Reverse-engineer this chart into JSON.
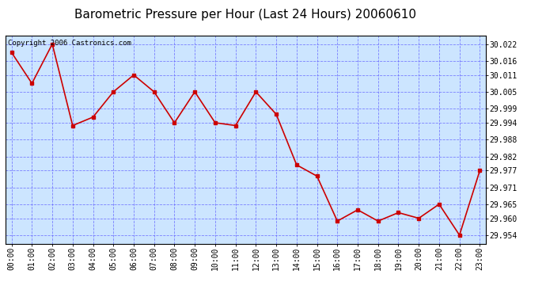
{
  "title": "Barometric Pressure per Hour (Last 24 Hours) 20060610",
  "copyright_text": "Copyright 2006 Castronics.com",
  "x_labels": [
    "00:00",
    "01:00",
    "02:00",
    "03:00",
    "04:00",
    "05:00",
    "06:00",
    "07:00",
    "08:00",
    "09:00",
    "10:00",
    "11:00",
    "12:00",
    "13:00",
    "14:00",
    "15:00",
    "16:00",
    "17:00",
    "18:00",
    "19:00",
    "20:00",
    "21:00",
    "22:00",
    "23:00"
  ],
  "y_values": [
    30.019,
    30.008,
    30.022,
    29.993,
    29.996,
    30.005,
    30.011,
    30.005,
    29.994,
    30.005,
    29.994,
    29.993,
    30.005,
    29.997,
    29.979,
    29.975,
    29.959,
    29.963,
    29.959,
    29.962,
    29.96,
    29.965,
    29.954,
    29.977
  ],
  "ylim_min": 29.951,
  "ylim_max": 30.025,
  "yticks": [
    30.022,
    30.016,
    30.011,
    30.005,
    29.999,
    29.994,
    29.988,
    29.982,
    29.977,
    29.971,
    29.965,
    29.96,
    29.954
  ],
  "line_color": "#cc0000",
  "marker_color": "#cc0000",
  "bg_color": "#cce5ff",
  "grid_color": "#6666ff",
  "title_color": "#000000",
  "title_fontsize": 11,
  "copyright_fontsize": 6.5,
  "tick_fontsize": 7,
  "ytick_fontsize": 7
}
